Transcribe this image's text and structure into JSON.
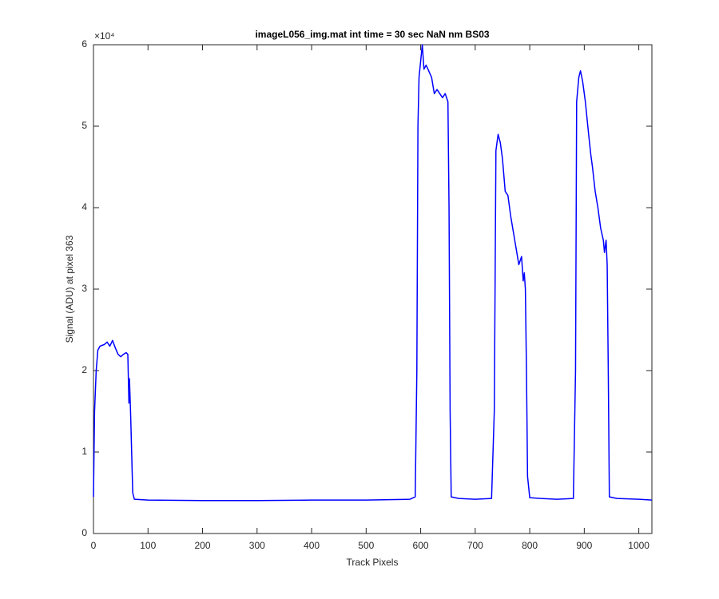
{
  "chart_data": {
    "type": "line",
    "title": "imageL056_img.mat int time = 30 sec  NaN nm BS03",
    "x_label": "Track Pixels",
    "y_label": "Signal (ADU) at pixel 363",
    "y_exponent_label": "×10⁴",
    "xlim": [
      0,
      1024
    ],
    "xticks": [
      0,
      100,
      200,
      300,
      400,
      500,
      600,
      700,
      800,
      900,
      1000
    ],
    "ylim": [
      0,
      6
    ],
    "yticks": [
      0,
      1,
      2,
      3,
      4,
      5,
      6
    ],
    "grid": false,
    "x": [
      0,
      2,
      5,
      8,
      12,
      20,
      25,
      30,
      35,
      40,
      45,
      50,
      55,
      60,
      63,
      65,
      66,
      68,
      70,
      72,
      75,
      100,
      200,
      300,
      400,
      500,
      580,
      590,
      593,
      595,
      597,
      600,
      603,
      606,
      610,
      620,
      625,
      630,
      640,
      645,
      650,
      652,
      654,
      656,
      670,
      700,
      730,
      735,
      738,
      742,
      746,
      750,
      755,
      760,
      765,
      770,
      775,
      780,
      785,
      788,
      790,
      792,
      794,
      796,
      800,
      820,
      850,
      880,
      884,
      886,
      890,
      893,
      897,
      902,
      908,
      912,
      915,
      920,
      925,
      930,
      935,
      937,
      940,
      942,
      944,
      946,
      960,
      1000,
      1024
    ],
    "series": [
      {
        "color": "#0000ff",
        "values": [
          0.45,
          1.5,
          2.0,
          2.25,
          2.3,
          2.32,
          2.35,
          2.3,
          2.37,
          2.28,
          2.2,
          2.17,
          2.2,
          2.22,
          2.2,
          1.6,
          1.9,
          1.5,
          1.0,
          0.5,
          0.42,
          0.41,
          0.405,
          0.405,
          0.41,
          0.41,
          0.42,
          0.45,
          2.0,
          5.0,
          5.6,
          5.8,
          6.0,
          5.7,
          5.75,
          5.6,
          5.4,
          5.45,
          5.35,
          5.4,
          5.3,
          4.0,
          1.5,
          0.45,
          0.43,
          0.42,
          0.43,
          1.5,
          4.7,
          4.9,
          4.8,
          4.6,
          4.2,
          4.15,
          3.9,
          3.7,
          3.5,
          3.3,
          3.4,
          3.1,
          3.2,
          3.0,
          2.0,
          0.7,
          0.44,
          0.43,
          0.42,
          0.43,
          2.0,
          5.3,
          5.6,
          5.68,
          5.55,
          5.3,
          4.9,
          4.65,
          4.5,
          4.2,
          4.0,
          3.75,
          3.6,
          3.45,
          3.6,
          3.3,
          2.0,
          0.45,
          0.43,
          0.42,
          0.41
        ]
      }
    ]
  }
}
